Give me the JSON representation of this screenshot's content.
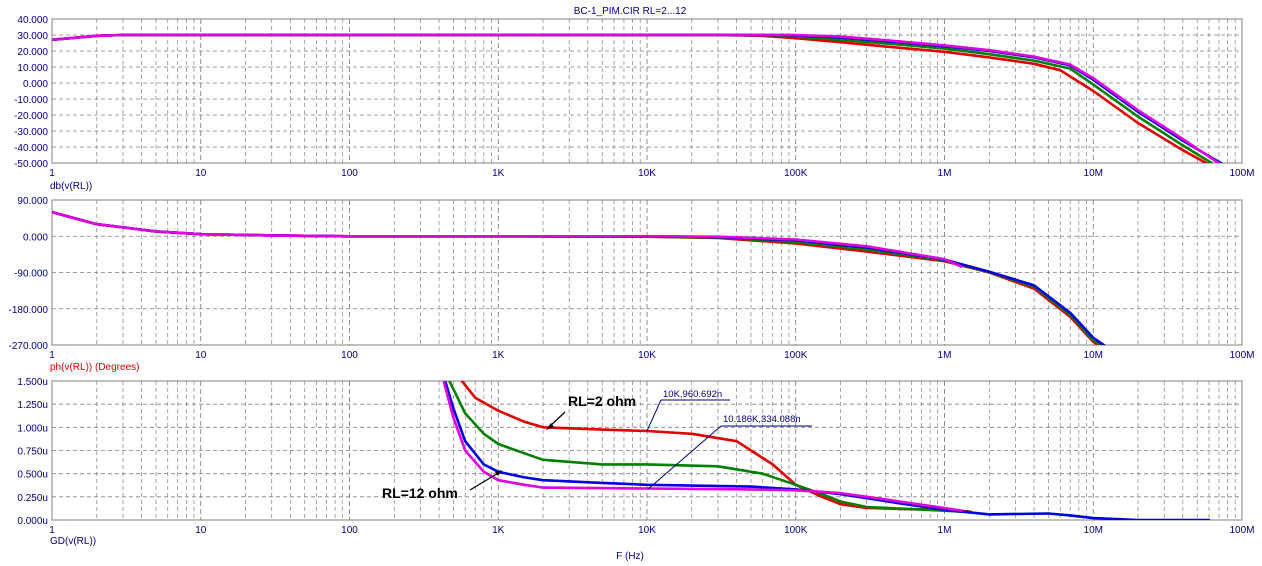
{
  "window": {
    "title": "BC-1_PIM.CIR RL=2...12",
    "x_axis_label": "F (Hz)"
  },
  "colors": {
    "axis_text": "#000080",
    "title_text": "#000080",
    "grid": "#808080",
    "plot_border": "#808080",
    "ylabel_top": "#000080",
    "ylabel_mid": "#e00000",
    "ylabel_bot": "#000080"
  },
  "chart_data": [
    {
      "type": "line",
      "xscale": "log",
      "xlim": [
        1,
        100000000
      ],
      "ylim": [
        -50,
        40
      ],
      "ylabel": "db(v(RL))",
      "x_tick_labels": [
        "1",
        "10",
        "100",
        "1K",
        "10K",
        "100K",
        "1M",
        "10M",
        "100M"
      ],
      "y_tick_labels": [
        "40.000",
        "30.000",
        "20.000",
        "10.000",
        "0.000",
        "-10.000",
        "-20.000",
        "-30.000",
        "-40.000",
        "-50.000"
      ],
      "series": [
        {
          "color": "#e00000",
          "points": [
            [
              1,
              27
            ],
            [
              2,
              29.5
            ],
            [
              3,
              30
            ],
            [
              10,
              30
            ],
            [
              100,
              30
            ],
            [
              1000,
              30
            ],
            [
              10000,
              30
            ],
            [
              30000,
              30
            ],
            [
              60000,
              29.5
            ],
            [
              100000,
              28
            ],
            [
              200000,
              25.5
            ],
            [
              500000,
              22
            ],
            [
              1000000,
              19.5
            ],
            [
              2000000,
              16
            ],
            [
              4000000,
              12
            ],
            [
              6000000,
              8
            ],
            [
              10000000,
              -5
            ],
            [
              20000000,
              -25
            ],
            [
              40000000,
              -42
            ],
            [
              60000000,
              -51
            ]
          ]
        },
        {
          "color": "#008000",
          "points": [
            [
              1,
              27
            ],
            [
              2,
              29.5
            ],
            [
              3,
              30
            ],
            [
              10,
              30
            ],
            [
              100,
              30
            ],
            [
              1000,
              30
            ],
            [
              10000,
              30
            ],
            [
              40000,
              30
            ],
            [
              70000,
              29.8
            ],
            [
              100000,
              29
            ],
            [
              200000,
              27
            ],
            [
              500000,
              24
            ],
            [
              1000000,
              21.5
            ],
            [
              2000000,
              18
            ],
            [
              4000000,
              14
            ],
            [
              7000000,
              9
            ],
            [
              10000000,
              -1
            ],
            [
              20000000,
              -21
            ],
            [
              40000000,
              -39
            ],
            [
              65000000,
              -51
            ]
          ]
        },
        {
          "color": "#0000e0",
          "points": [
            [
              1,
              27
            ],
            [
              2,
              29.5
            ],
            [
              3,
              30
            ],
            [
              10,
              30
            ],
            [
              100,
              30
            ],
            [
              1000,
              30
            ],
            [
              10000,
              30
            ],
            [
              50000,
              30
            ],
            [
              80000,
              30
            ],
            [
              100000,
              29.8
            ],
            [
              200000,
              28.5
            ],
            [
              500000,
              25.5
            ],
            [
              1000000,
              23
            ],
            [
              2000000,
              20
            ],
            [
              4000000,
              16
            ],
            [
              7000000,
              11
            ],
            [
              10000000,
              2
            ],
            [
              20000000,
              -18
            ],
            [
              40000000,
              -36
            ],
            [
              75000000,
              -51
            ]
          ]
        },
        {
          "color": "#e000e0",
          "points": [
            [
              1,
              27
            ],
            [
              2,
              29.5
            ],
            [
              3,
              30
            ],
            [
              10,
              30
            ],
            [
              100,
              30
            ],
            [
              1000,
              30
            ],
            [
              10000,
              30
            ],
            [
              50000,
              30
            ],
            [
              80000,
              30
            ],
            [
              100000,
              30
            ],
            [
              200000,
              29
            ],
            [
              500000,
              26
            ],
            [
              1000000,
              23.5
            ],
            [
              2000000,
              20.5
            ],
            [
              4000000,
              16.5
            ],
            [
              7000000,
              11.5
            ],
            [
              10000000,
              3
            ],
            [
              20000000,
              -17
            ],
            [
              40000000,
              -35
            ],
            [
              72000000,
              -51
            ]
          ]
        }
      ]
    },
    {
      "type": "line",
      "xscale": "log",
      "xlim": [
        1,
        100000000
      ],
      "ylim": [
        -270,
        90
      ],
      "ylabel": "ph(v(RL)) (Degrees)",
      "x_tick_labels": [
        "1",
        "10",
        "100",
        "1K",
        "10K",
        "100K",
        "1M",
        "10M",
        "100M"
      ],
      "y_tick_labels": [
        "90.000",
        "0.000",
        "-90.000",
        "-180.000",
        "-270.000"
      ],
      "series": [
        {
          "color": "#e00000",
          "points": [
            [
              1,
              60
            ],
            [
              2,
              30
            ],
            [
              5,
              12
            ],
            [
              10,
              5
            ],
            [
              30,
              2
            ],
            [
              100,
              0
            ],
            [
              1000,
              0
            ],
            [
              10000,
              -1
            ],
            [
              30000,
              -4
            ],
            [
              100000,
              -18
            ],
            [
              300000,
              -38
            ],
            [
              1000000,
              -62
            ],
            [
              2000000,
              -90
            ],
            [
              4000000,
              -130
            ],
            [
              7000000,
              -200
            ],
            [
              10000000,
              -262
            ],
            [
              11000000,
              -272
            ]
          ]
        },
        {
          "color": "#008000",
          "points": [
            [
              1,
              60
            ],
            [
              2,
              30
            ],
            [
              5,
              12
            ],
            [
              10,
              5
            ],
            [
              30,
              2
            ],
            [
              100,
              0
            ],
            [
              1000,
              0
            ],
            [
              10000,
              -1
            ],
            [
              30000,
              -3
            ],
            [
              100000,
              -14
            ],
            [
              300000,
              -33
            ],
            [
              1000000,
              -60
            ],
            [
              2000000,
              -89
            ],
            [
              4000000,
              -125
            ],
            [
              7000000,
              -195
            ],
            [
              10000000,
              -258
            ],
            [
              11500000,
              -272
            ]
          ]
        },
        {
          "color": "#0000e0",
          "points": [
            [
              1,
              60
            ],
            [
              2,
              30
            ],
            [
              5,
              12
            ],
            [
              10,
              5
            ],
            [
              30,
              2
            ],
            [
              100,
              0
            ],
            [
              1000,
              0
            ],
            [
              10000,
              0
            ],
            [
              30000,
              -2
            ],
            [
              100000,
              -10
            ],
            [
              300000,
              -28
            ],
            [
              1000000,
              -58
            ],
            [
              2000000,
              -88
            ],
            [
              4000000,
              -122
            ],
            [
              7000000,
              -190
            ],
            [
              10000000,
              -252
            ],
            [
              12000000,
              -272
            ]
          ]
        },
        {
          "color": "#e000e0",
          "points": [
            [
              1,
              60
            ],
            [
              2,
              30
            ],
            [
              5,
              12
            ],
            [
              10,
              5
            ],
            [
              30,
              2
            ],
            [
              100,
              0
            ],
            [
              1000,
              0
            ],
            [
              10000,
              0
            ],
            [
              30000,
              -1
            ],
            [
              100000,
              -8
            ],
            [
              300000,
              -25
            ],
            [
              1000000,
              -57
            ],
            [
              1300000,
              -75
            ]
          ]
        }
      ]
    },
    {
      "type": "line",
      "xscale": "log",
      "xlim": [
        1,
        100000000
      ],
      "ylim": [
        0,
        1.5
      ],
      "ylabel": "GD(v(RL))",
      "xlabel": "F (Hz)",
      "x_tick_labels": [
        "1",
        "10",
        "100",
        "1K",
        "10K",
        "100K",
        "1M",
        "10M",
        "100M"
      ],
      "y_tick_labels": [
        "1.500u",
        "1.250u",
        "1.000u",
        "0.750u",
        "0.500u",
        "0.250u",
        "0.000u"
      ],
      "series": [
        {
          "color": "#e00000",
          "points": [
            [
              570,
              1.5
            ],
            [
              700,
              1.32
            ],
            [
              1000,
              1.18
            ],
            [
              1500,
              1.06
            ],
            [
              2000,
              1.0
            ],
            [
              5000,
              0.975
            ],
            [
              10000,
              0.96
            ],
            [
              20000,
              0.93
            ],
            [
              40000,
              0.85
            ],
            [
              70000,
              0.6
            ],
            [
              100000,
              0.38
            ],
            [
              150000,
              0.25
            ],
            [
              200000,
              0.17
            ],
            [
              300000,
              0.13
            ],
            [
              500000,
              0.12
            ],
            [
              1000000,
              0.11
            ],
            [
              1500000,
              0.09
            ]
          ]
        },
        {
          "color": "#008000",
          "points": [
            [
              470,
              1.5
            ],
            [
              600,
              1.15
            ],
            [
              800,
              0.93
            ],
            [
              1000,
              0.82
            ],
            [
              1500,
              0.72
            ],
            [
              2000,
              0.65
            ],
            [
              5000,
              0.6
            ],
            [
              10000,
              0.6
            ],
            [
              30000,
              0.58
            ],
            [
              60000,
              0.5
            ],
            [
              100000,
              0.38
            ],
            [
              150000,
              0.28
            ],
            [
              200000,
              0.2
            ],
            [
              300000,
              0.14
            ],
            [
              1000000,
              0.1
            ],
            [
              1300000,
              0.09
            ]
          ]
        },
        {
          "color": "#0000e0",
          "points": [
            [
              440,
              1.5
            ],
            [
              500,
              1.2
            ],
            [
              600,
              0.85
            ],
            [
              800,
              0.6
            ],
            [
              1000,
              0.52
            ],
            [
              1500,
              0.46
            ],
            [
              2000,
              0.43
            ],
            [
              5000,
              0.4
            ],
            [
              10000,
              0.38
            ],
            [
              50000,
              0.36
            ],
            [
              100000,
              0.33
            ],
            [
              200000,
              0.28
            ],
            [
              500000,
              0.18
            ],
            [
              1000000,
              0.11
            ],
            [
              2000000,
              0.06
            ],
            [
              5000000,
              0.07
            ],
            [
              7000000,
              0.05
            ],
            [
              10000000,
              0.02
            ],
            [
              20000000,
              0.0
            ],
            [
              60000000,
              0.0
            ]
          ]
        },
        {
          "color": "#e000e0",
          "points": [
            [
              430,
              1.5
            ],
            [
              500,
              1.1
            ],
            [
              600,
              0.75
            ],
            [
              800,
              0.52
            ],
            [
              1000,
              0.43
            ],
            [
              1500,
              0.38
            ],
            [
              2000,
              0.35
            ],
            [
              10000,
              0.34
            ],
            [
              50000,
              0.33
            ],
            [
              100000,
              0.32
            ],
            [
              200000,
              0.29
            ],
            [
              500000,
              0.2
            ],
            [
              1000000,
              0.13
            ],
            [
              1300000,
              0.1
            ]
          ]
        }
      ],
      "annotations": [
        {
          "text": "RL=2 ohm",
          "x": 3000,
          "y": 1.15
        },
        {
          "text": "RL=12 ohm",
          "x": 1500,
          "y": 0.28
        },
        {
          "text": "10K,960.692n",
          "x": 10000,
          "y": 0.960692
        },
        {
          "text": "10.186K,334.088n",
          "x": 10186,
          "y": 0.334088
        }
      ]
    }
  ]
}
